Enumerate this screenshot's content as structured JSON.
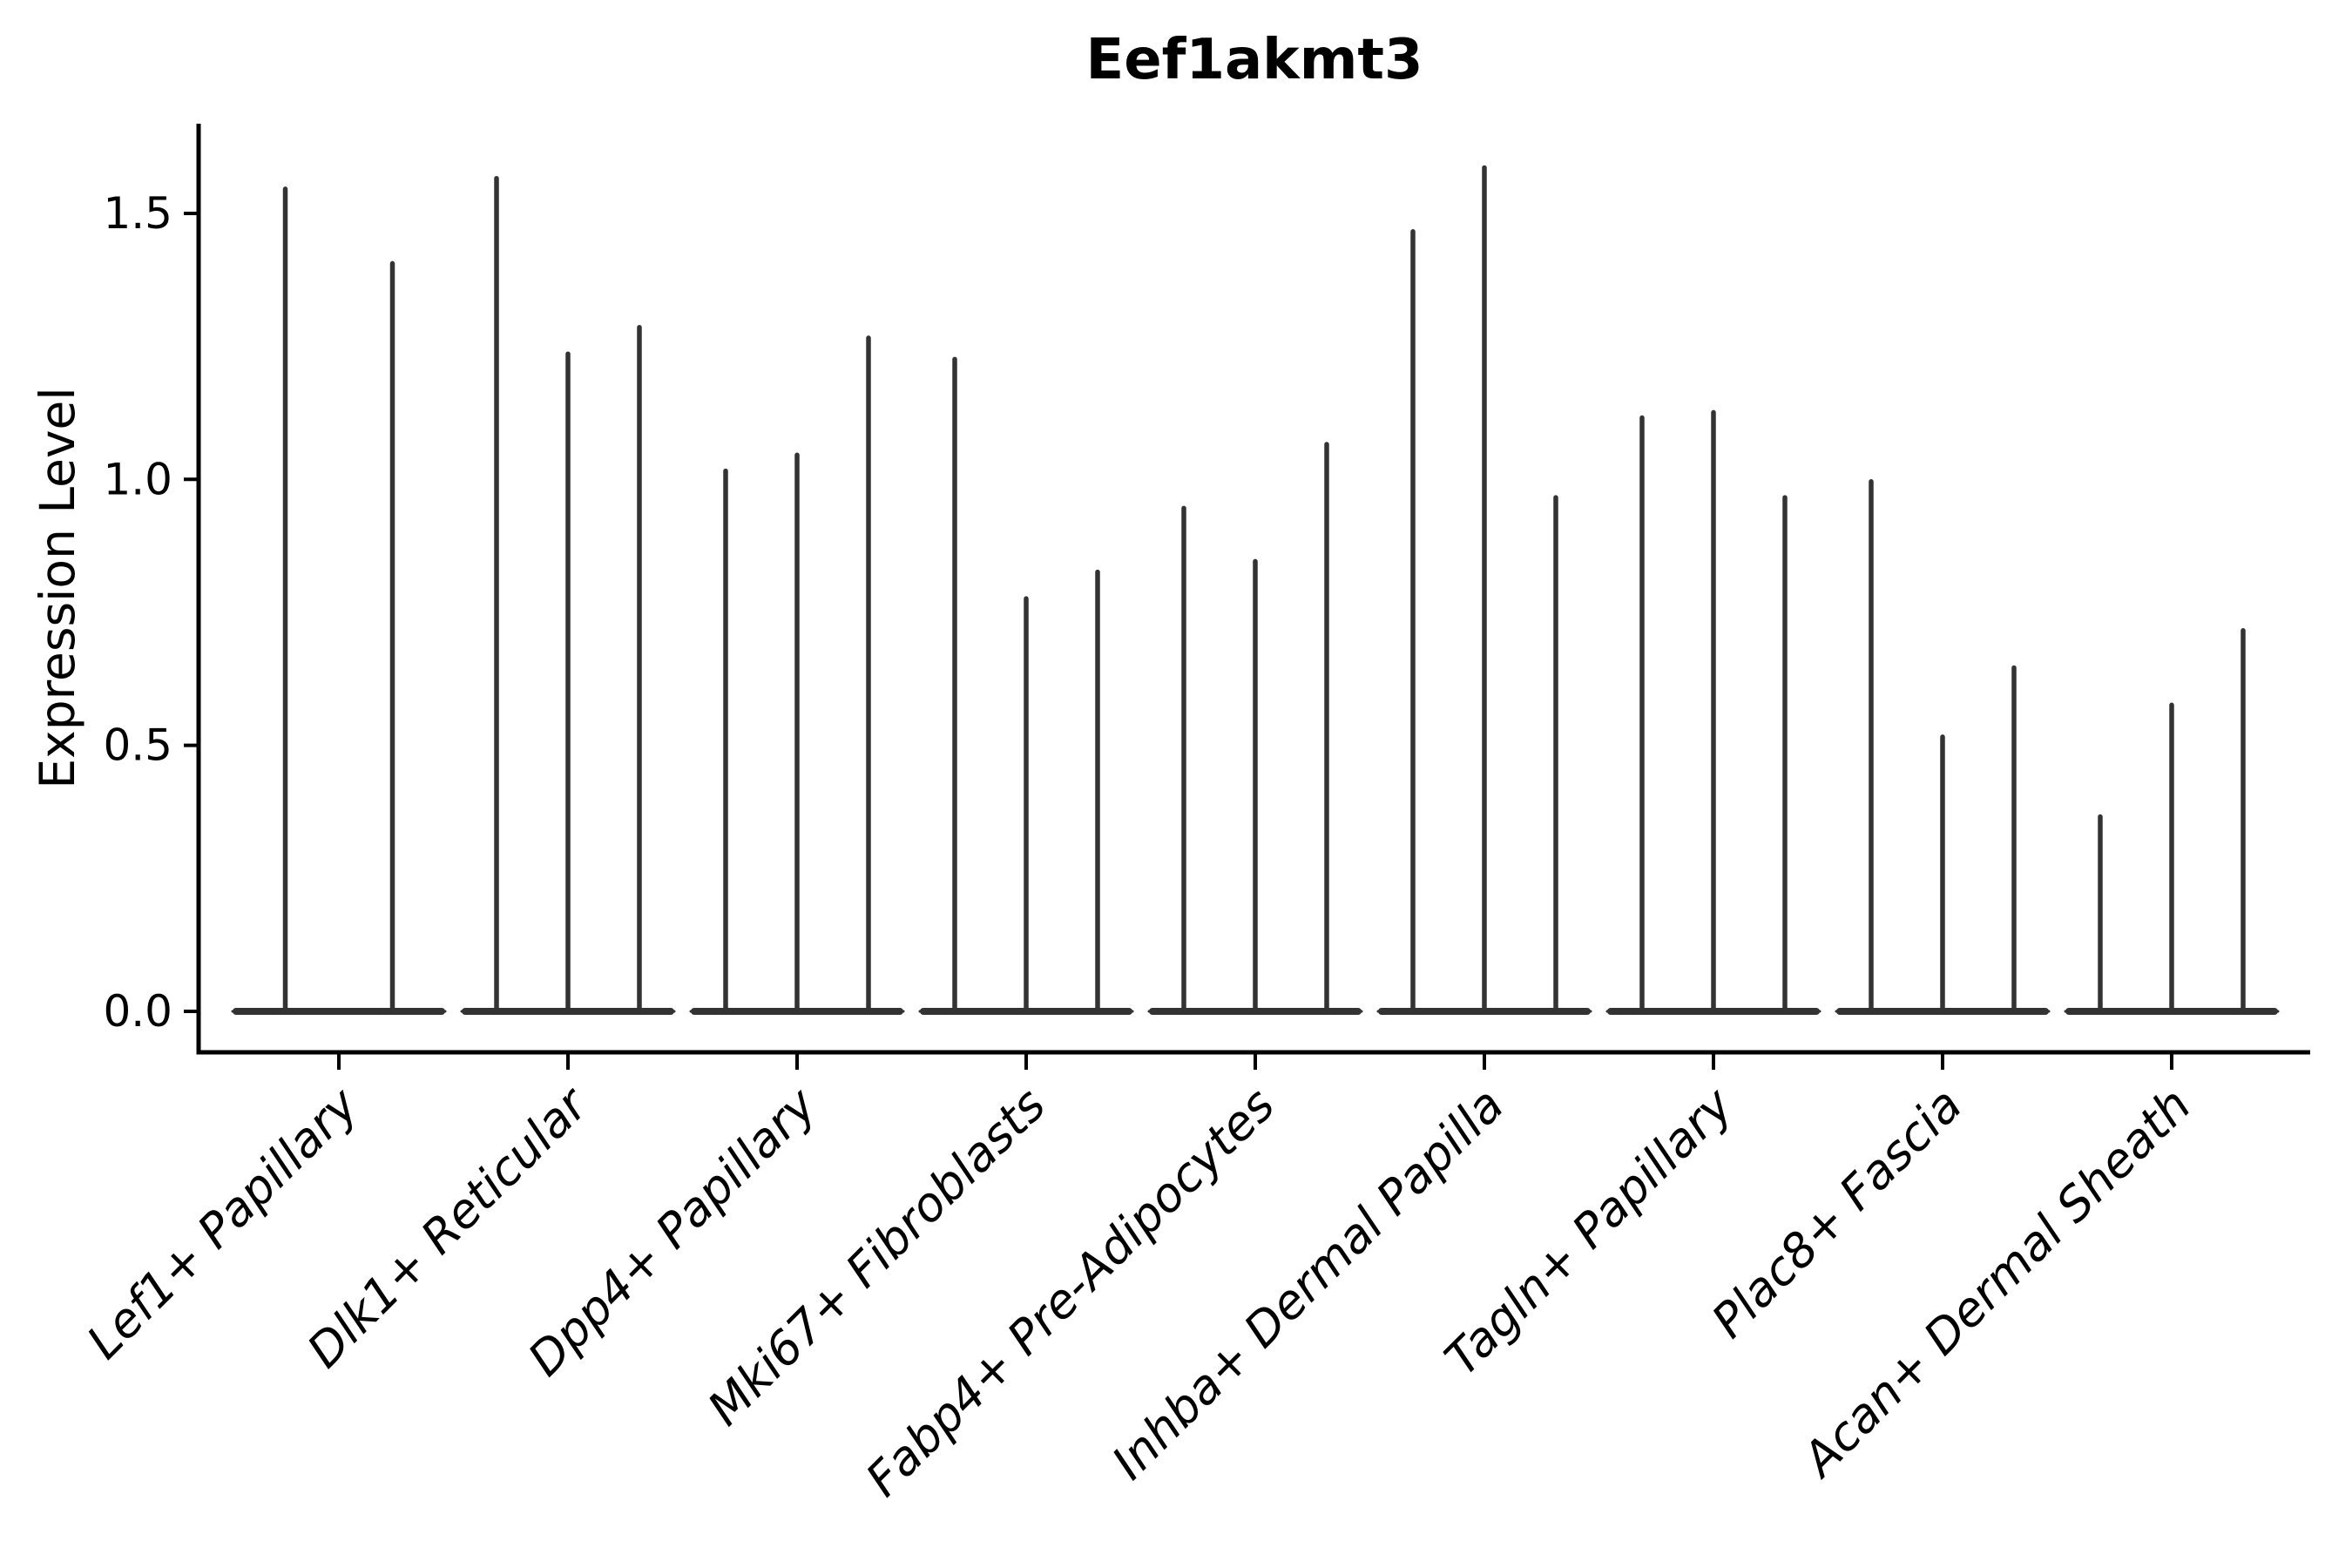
{
  "figure": {
    "title": "Eef1akmt3"
  },
  "chart_data": {
    "type": "violin",
    "title": "Eef1akmt3",
    "xlabel": "",
    "ylabel": "Expression Level",
    "ylim": [
      -0.08,
      1.67
    ],
    "yticks": [
      0.0,
      0.5,
      1.0,
      1.5
    ],
    "ytick_labels": [
      "0.0",
      "0.5",
      "1.0",
      "1.5"
    ],
    "grid": false,
    "legend": null,
    "categories": [
      "Lef1+ Papillary",
      "Dlk1+ Reticular",
      "Dpp4+ Papillary",
      "Mki67+ Fibroblasts",
      "Fabp4+ Pre-Adipocytes",
      "Inhba+ Dermal Papilla",
      "Tagln+ Papillary",
      "Plac8+ Fascia",
      "Acan+ Dermal Sheath"
    ],
    "violins": [
      {
        "category": "Lef1+ Papillary",
        "density_peak_at": 0.0,
        "max_values": [
          1.55,
          1.41
        ]
      },
      {
        "category": "Dlk1+ Reticular",
        "density_peak_at": 0.0,
        "max_values": [
          1.57,
          1.24,
          1.29
        ]
      },
      {
        "category": "Dpp4+ Papillary",
        "density_peak_at": 0.0,
        "max_values": [
          1.02,
          1.05,
          1.27
        ]
      },
      {
        "category": "Mki67+ Fibroblasts",
        "density_peak_at": 0.0,
        "max_values": [
          1.23,
          0.78,
          0.83
        ]
      },
      {
        "category": "Fabp4+ Pre-Adipocytes",
        "density_peak_at": 0.0,
        "max_values": [
          0.95,
          0.85,
          1.07
        ]
      },
      {
        "category": "Inhba+ Dermal Papilla",
        "density_peak_at": 0.0,
        "max_values": [
          1.47,
          1.59,
          0.97
        ]
      },
      {
        "category": "Tagln+ Papillary",
        "density_peak_at": 0.0,
        "max_values": [
          1.12,
          1.13,
          0.97
        ]
      },
      {
        "category": "Plac8+ Fascia",
        "density_peak_at": 0.0,
        "max_values": [
          1.0,
          0.52,
          0.65
        ]
      },
      {
        "category": "Acan+ Dermal Sheath",
        "density_peak_at": 0.0,
        "max_values": [
          0.37,
          0.58,
          0.72
        ]
      }
    ],
    "colors": {
      "violin": "#333333",
      "axis": "#000000",
      "text": "#000000",
      "background": "#ffffff"
    }
  }
}
